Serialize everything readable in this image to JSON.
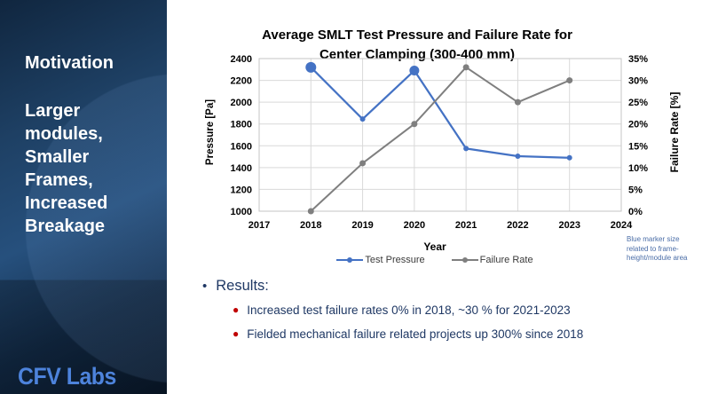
{
  "sidebar": {
    "heading": "Motivation",
    "subheading": "Larger modules, Smaller Frames, Increased Breakage",
    "logo": "CFV Labs"
  },
  "results": {
    "bullet_icon": "bullet-dot",
    "heading": "Results:",
    "bullets": [
      "Increased test failure rates 0% in 2018, ~30 % for 2021-2023",
      "Fielded mechanical failure related projects up 300% since 2018"
    ],
    "bullet_color": "#c00000",
    "text_color": "#1f3864"
  },
  "chart_data": {
    "type": "line",
    "title": "Average SMLT Test Pressure and Failure Rate for Center Clamping (300-400 mm)",
    "title_lines": [
      "Average SMLT Test Pressure and Failure Rate for",
      "Center Clamping (300-400 mm)"
    ],
    "xlabel": "Year",
    "ylabel_left": "Pressure [Pa]",
    "ylabel_right": "Failure Rate [%]",
    "x_ticks": [
      2017,
      2018,
      2019,
      2020,
      2021,
      2022,
      2023,
      2024
    ],
    "ylim_left": [
      1000,
      2400
    ],
    "y_ticks_left": [
      2400,
      2200,
      2000,
      1800,
      1600,
      1400,
      1200,
      1000
    ],
    "ylim_right": [
      0,
      35
    ],
    "y_ticks_right": [
      35,
      30,
      25,
      20,
      15,
      10,
      5,
      0
    ],
    "grid": true,
    "legend_position": "bottom",
    "categories": [
      2018,
      2019,
      2020,
      2021,
      2022,
      2023
    ],
    "series": [
      {
        "name": "Test Pressure",
        "axis": "left",
        "color": "#4472c4",
        "values": [
          2320,
          1845,
          2290,
          1575,
          1505,
          1490
        ],
        "marker_radii": [
          6,
          3,
          5.5,
          3,
          3,
          3
        ]
      },
      {
        "name": "Failure Rate",
        "axis": "right",
        "color": "#7f7f7f",
        "values": [
          0,
          11,
          20,
          33,
          25,
          30
        ],
        "marker_radii": [
          3.5,
          3.5,
          3.5,
          3.5,
          3.5,
          3.5
        ]
      }
    ],
    "annotation": "Blue marker size related to frame-height/module area",
    "annotation_color": "#4a6da7",
    "grid_color": "#d9d9d9",
    "tick_color": "#000000"
  }
}
